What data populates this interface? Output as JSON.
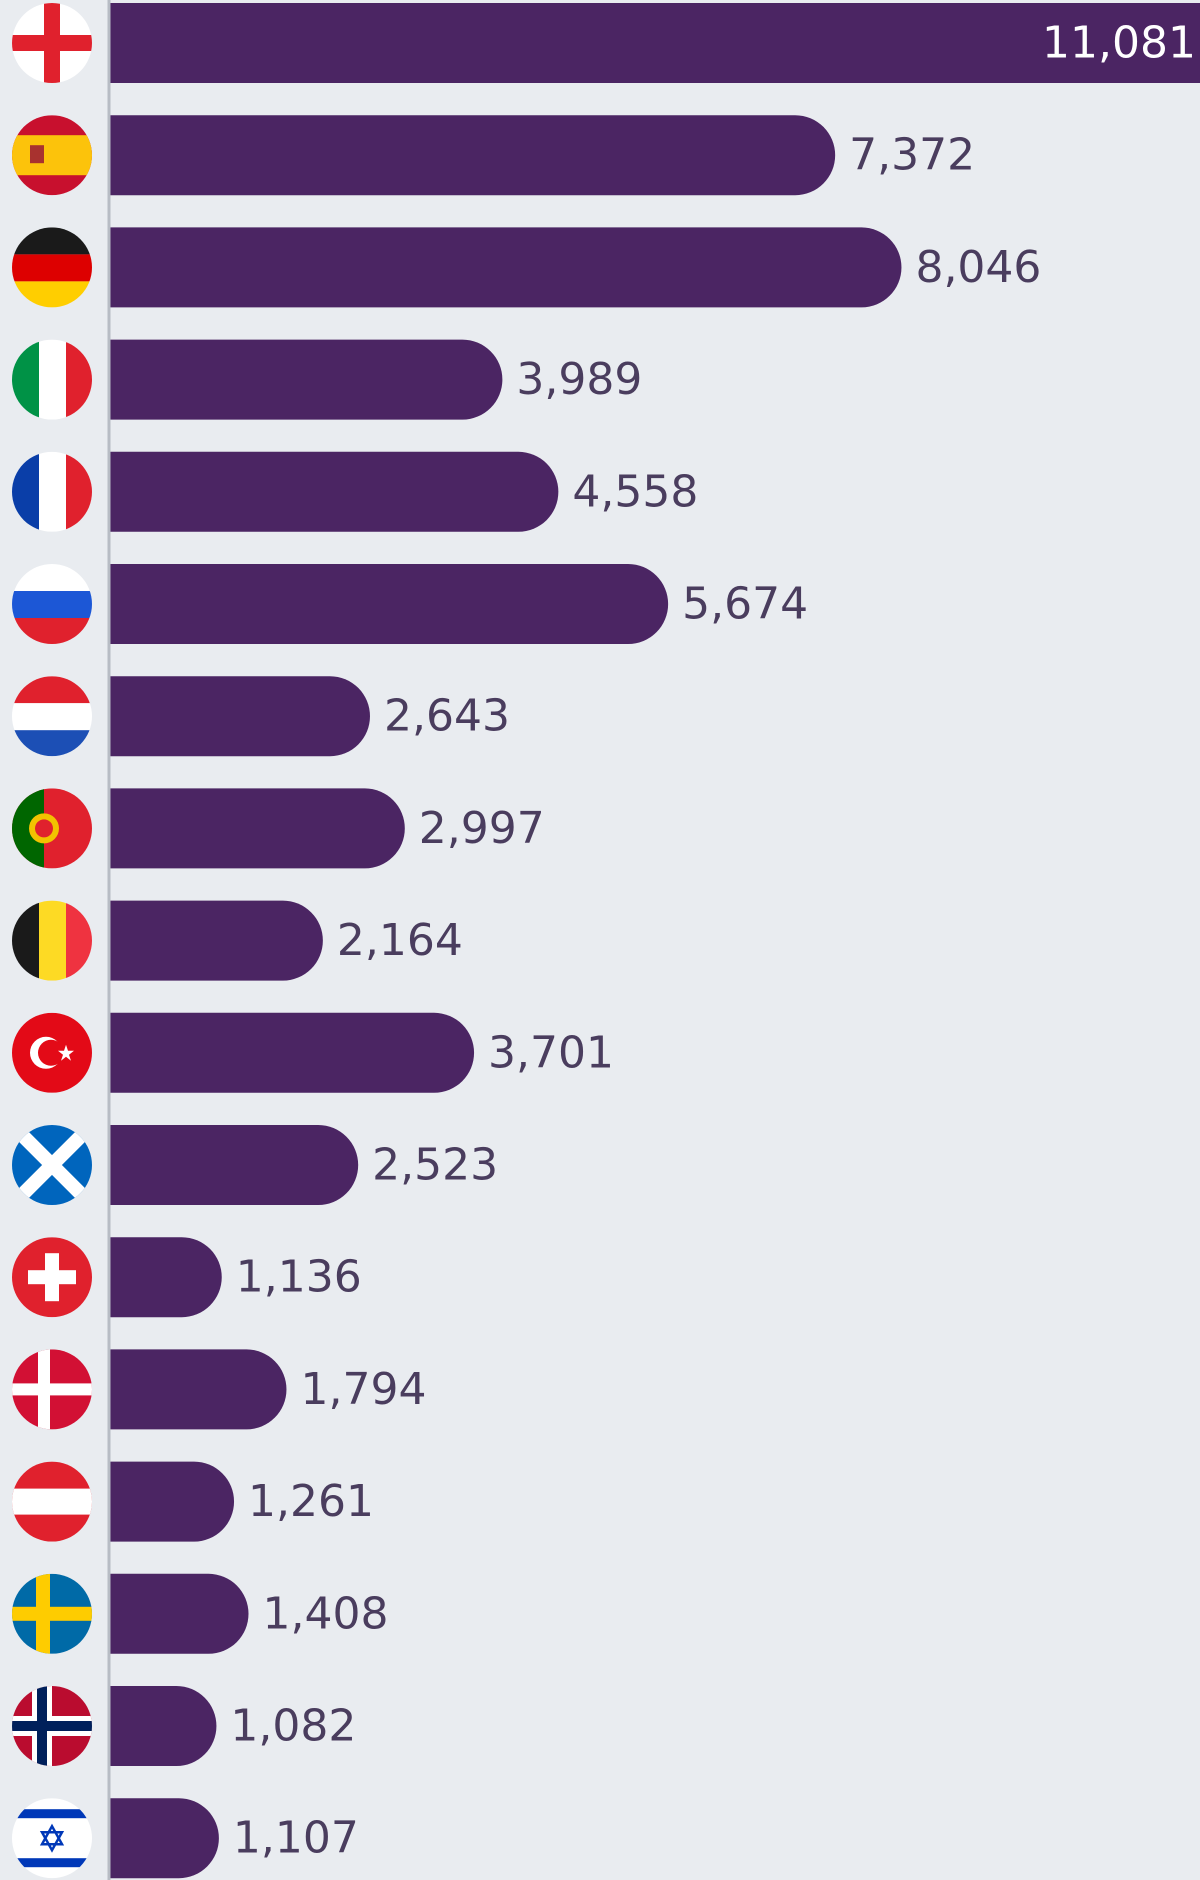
{
  "chart_data": {
    "type": "bar",
    "orientation": "horizontal",
    "categories": [
      "England",
      "Spain",
      "Germany",
      "Italy",
      "France",
      "Russia",
      "Netherlands",
      "Portugal",
      "Belgium",
      "Turkey",
      "Scotland",
      "Switzerland",
      "Denmark",
      "Austria",
      "Sweden",
      "Norway",
      "Israel"
    ],
    "values": [
      11081,
      7372,
      8046,
      3989,
      4558,
      5674,
      2643,
      2997,
      2164,
      3701,
      2523,
      1136,
      1794,
      1261,
      1408,
      1082,
      1107
    ],
    "value_labels": [
      "11,081",
      "7,372",
      "8,046",
      "3,989",
      "4,558",
      "5,674",
      "2,643",
      "2,997",
      "2,164",
      "3,701",
      "2,523",
      "1,136",
      "1,794",
      "1,261",
      "1,408",
      "1,082",
      "1,107"
    ],
    "flag_icons": [
      "england-flag-icon",
      "spain-flag-icon",
      "germany-flag-icon",
      "italy-flag-icon",
      "france-flag-icon",
      "russia-flag-icon",
      "netherlands-flag-icon",
      "portugal-flag-icon",
      "belgium-flag-icon",
      "turkey-flag-icon",
      "scotland-flag-icon",
      "switzerland-flag-icon",
      "denmark-flag-icon",
      "austria-flag-icon",
      "sweden-flag-icon",
      "norway-flag-icon",
      "israel-flag-icon"
    ],
    "xlim": [
      0,
      11081
    ],
    "title": "",
    "xlabel": "",
    "ylabel": "",
    "grid": false,
    "legend": "none"
  },
  "colors": {
    "bar": "#4b2563",
    "background": "#e9ecf0",
    "label": "#4a3d5e",
    "label_inside": "#ffffff",
    "axis_line": "#b7bcc4"
  }
}
